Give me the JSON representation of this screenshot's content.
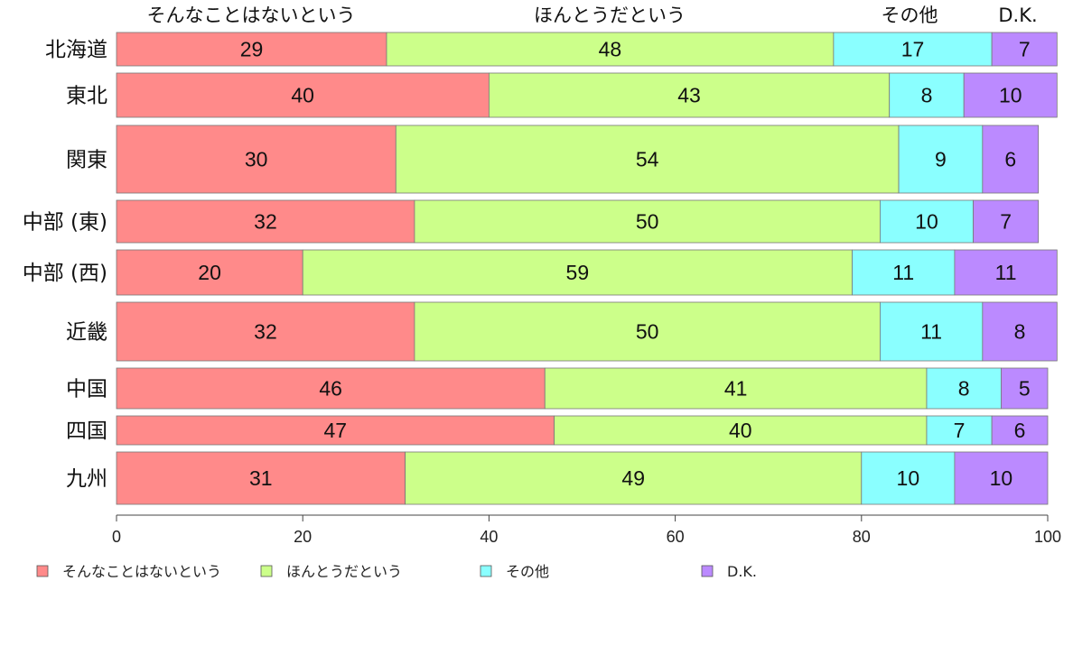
{
  "chart_data": {
    "type": "bar",
    "orientation": "horizontal",
    "stacked": true,
    "categories": [
      "北海道",
      "東北",
      "関東",
      "中部 (東)",
      "中部 (西)",
      "近畿",
      "中国",
      "四国",
      "九州"
    ],
    "series": [
      {
        "name": "そんなことはないという",
        "color": "#ff8a8a",
        "values": [
          29,
          40,
          30,
          32,
          20,
          32,
          46,
          47,
          31
        ]
      },
      {
        "name": "ほんとうだという",
        "color": "#ccff8a",
        "values": [
          48,
          43,
          54,
          50,
          59,
          50,
          41,
          40,
          49
        ]
      },
      {
        "name": "その他",
        "color": "#8affff",
        "values": [
          17,
          8,
          9,
          10,
          11,
          11,
          8,
          7,
          10
        ]
      },
      {
        "name": "D.K.",
        "color": "#bb8aff",
        "values": [
          7,
          10,
          6,
          7,
          11,
          8,
          5,
          6,
          10
        ]
      }
    ],
    "top_labels": [
      "そんなことはないという",
      "ほんとうだという",
      "その他",
      "D.K."
    ],
    "xlim": [
      0,
      100
    ],
    "xticks": [
      0,
      20,
      40,
      60,
      80,
      100
    ],
    "legend_position": "bottom",
    "grid": false
  }
}
